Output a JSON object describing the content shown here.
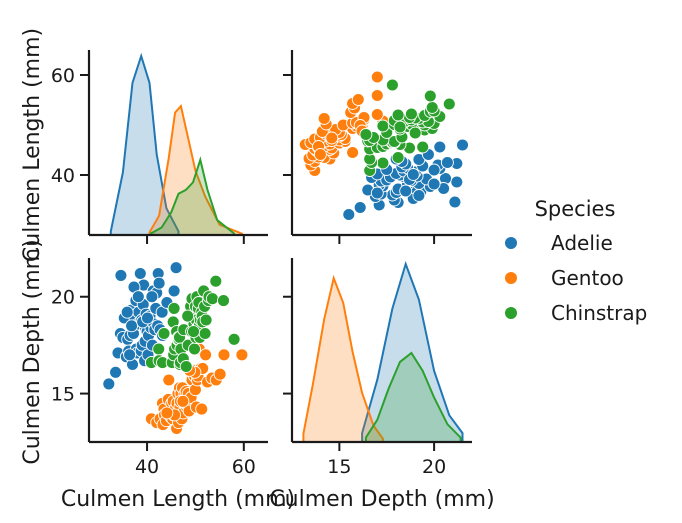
{
  "chart_data": {
    "type": "pairplot",
    "variables": [
      "Culmen Length (mm)",
      "Culmen Depth (mm)"
    ],
    "x_ticks": {
      "Culmen Length (mm)": [
        40,
        60
      ],
      "Culmen Depth (mm)": [
        15,
        20
      ]
    },
    "y_ticks": {
      "Culmen Length (mm)": [
        40,
        60
      ],
      "Culmen Depth (mm)": [
        15,
        20
      ]
    },
    "axis_ranges": {
      "Culmen Length (mm)": [
        28,
        65
      ],
      "Culmen Depth (mm)": [
        12.5,
        22
      ]
    },
    "legend": {
      "title": "Species",
      "placement": "right"
    },
    "series": [
      {
        "name": "Adelie",
        "color": "#1f77b4",
        "kde_length": {
          "x": [
            32.5,
            35,
            37,
            38.8,
            40.5,
            42,
            44,
            46.5
          ],
          "density": [
            0.02,
            0.35,
            0.85,
            1.0,
            0.85,
            0.45,
            0.15,
            0.02
          ]
        },
        "kde_depth": {
          "x": [
            16.2,
            17.0,
            17.8,
            18.5,
            19.2,
            20.0,
            20.8,
            21.5
          ],
          "density": [
            0.05,
            0.35,
            0.75,
            1.0,
            0.8,
            0.4,
            0.15,
            0.05
          ]
        },
        "points": [
          [
            32.1,
            15.5
          ],
          [
            33.5,
            16.1
          ],
          [
            34.0,
            17.1
          ],
          [
            34.5,
            18.1
          ],
          [
            35.0,
            17.9
          ],
          [
            35.3,
            18.9
          ],
          [
            35.7,
            16.9
          ],
          [
            36.0,
            17.8
          ],
          [
            36.2,
            17.2
          ],
          [
            36.5,
            18.0
          ],
          [
            36.7,
            19.3
          ],
          [
            37.0,
            16.5
          ],
          [
            37.2,
            18.1
          ],
          [
            37.5,
            18.9
          ],
          [
            37.7,
            19.8
          ],
          [
            37.8,
            17.3
          ],
          [
            38.0,
            17.1
          ],
          [
            38.1,
            18.6
          ],
          [
            38.3,
            19.2
          ],
          [
            38.6,
            21.2
          ],
          [
            38.8,
            17.2
          ],
          [
            38.9,
            18.8
          ],
          [
            39.0,
            17.5
          ],
          [
            39.2,
            19.6
          ],
          [
            39.3,
            20.6
          ],
          [
            39.5,
            16.7
          ],
          [
            39.6,
            17.7
          ],
          [
            39.7,
            18.4
          ],
          [
            39.8,
            19.1
          ],
          [
            40.0,
            18.2
          ],
          [
            40.2,
            17.0
          ],
          [
            40.3,
            18.0
          ],
          [
            40.5,
            18.9
          ],
          [
            40.6,
            19.0
          ],
          [
            40.8,
            18.4
          ],
          [
            40.9,
            16.6
          ],
          [
            41.1,
            17.5
          ],
          [
            41.3,
            20.3
          ],
          [
            41.4,
            18.6
          ],
          [
            41.6,
            18.3
          ],
          [
            41.8,
            19.4
          ],
          [
            42.0,
            20.2
          ],
          [
            42.2,
            18.5
          ],
          [
            42.3,
            21.2
          ],
          [
            42.5,
            20.7
          ],
          [
            42.7,
            18.3
          ],
          [
            43.1,
            19.2
          ],
          [
            43.2,
            18.0
          ],
          [
            44.1,
            19.7
          ],
          [
            45.6,
            20.3
          ],
          [
            46.0,
            21.5
          ],
          [
            35.9,
            19.2
          ],
          [
            34.6,
            21.1
          ],
          [
            37.3,
            20.5
          ],
          [
            36.8,
            18.5
          ],
          [
            39.1,
            18.7
          ],
          [
            40.1,
            18.9
          ],
          [
            38.2,
            20.0
          ],
          [
            41.0,
            20.0
          ],
          [
            36.4,
            17.0
          ]
        ]
      },
      {
        "name": "Gentoo",
        "color": "#ff7f0e",
        "kde_length": {
          "x": [
            40.5,
            42.5,
            44.5,
            45.8,
            47.0,
            48.5,
            50.0,
            52.0,
            55.0,
            59.6
          ],
          "density": [
            0.02,
            0.15,
            0.6,
            0.95,
            1.0,
            0.75,
            0.5,
            0.3,
            0.08,
            0.01
          ]
        },
        "kde_depth": {
          "x": [
            13.1,
            13.6,
            14.2,
            14.7,
            15.2,
            15.7,
            16.2,
            16.8,
            17.3
          ],
          "density": [
            0.05,
            0.35,
            0.75,
            1.0,
            0.85,
            0.55,
            0.3,
            0.1,
            0.02
          ]
        },
        "points": [
          [
            40.9,
            13.7
          ],
          [
            42.0,
            13.5
          ],
          [
            42.7,
            13.7
          ],
          [
            43.2,
            14.5
          ],
          [
            43.3,
            13.4
          ],
          [
            43.5,
            14.2
          ],
          [
            43.6,
            13.9
          ],
          [
            44.0,
            13.6
          ],
          [
            44.4,
            14.7
          ],
          [
            44.5,
            15.7
          ],
          [
            44.9,
            13.8
          ],
          [
            45.1,
            14.5
          ],
          [
            45.2,
            13.8
          ],
          [
            45.3,
            13.7
          ],
          [
            45.4,
            14.6
          ],
          [
            45.5,
            13.9
          ],
          [
            45.8,
            14.2
          ],
          [
            46.1,
            13.2
          ],
          [
            46.2,
            14.5
          ],
          [
            46.4,
            15.0
          ],
          [
            46.5,
            13.5
          ],
          [
            46.7,
            15.3
          ],
          [
            46.8,
            14.3
          ],
          [
            47.0,
            15.0
          ],
          [
            47.2,
            13.7
          ],
          [
            47.3,
            15.3
          ],
          [
            47.5,
            14.0
          ],
          [
            47.6,
            14.5
          ],
          [
            47.8,
            15.0
          ],
          [
            48.1,
            15.1
          ],
          [
            48.2,
            14.3
          ],
          [
            48.4,
            14.4
          ],
          [
            48.5,
            15.0
          ],
          [
            48.7,
            14.1
          ],
          [
            49.0,
            16.1
          ],
          [
            49.1,
            14.8
          ],
          [
            49.3,
            15.7
          ],
          [
            49.5,
            16.2
          ],
          [
            49.8,
            15.9
          ],
          [
            50.0,
            15.2
          ],
          [
            50.2,
            14.3
          ],
          [
            50.4,
            15.7
          ],
          [
            50.5,
            15.9
          ],
          [
            50.8,
            17.3
          ],
          [
            51.1,
            16.3
          ],
          [
            51.3,
            14.2
          ],
          [
            51.5,
            16.3
          ],
          [
            52.1,
            17.0
          ],
          [
            52.5,
            15.6
          ],
          [
            53.4,
            15.8
          ],
          [
            54.3,
            15.7
          ],
          [
            55.1,
            16.0
          ],
          [
            55.9,
            17.0
          ],
          [
            59.6,
            17.0
          ],
          [
            49.9,
            16.1
          ],
          [
            45.7,
            13.9
          ],
          [
            46.9,
            14.6
          ],
          [
            47.4,
            14.6
          ],
          [
            48.8,
            16.2
          ],
          [
            44.1,
            14.0
          ]
        ]
      },
      {
        "name": "Chinstrap",
        "color": "#2ca02c",
        "kde_length": {
          "x": [
            40.8,
            43.0,
            45.0,
            46.5,
            48.0,
            49.5,
            51.0,
            52.5,
            54.5,
            58.0
          ],
          "density": [
            0.02,
            0.1,
            0.3,
            0.55,
            0.6,
            0.7,
            1.0,
            0.6,
            0.2,
            0.02
          ]
        },
        "kde_depth": {
          "x": [
            16.4,
            17.0,
            17.6,
            18.2,
            18.8,
            19.4,
            20.0,
            20.7,
            21.4
          ],
          "density": [
            0.05,
            0.25,
            0.6,
            0.9,
            1.0,
            0.8,
            0.5,
            0.2,
            0.05
          ]
        },
        "points": [
          [
            40.9,
            16.6
          ],
          [
            42.4,
            17.3
          ],
          [
            42.5,
            16.7
          ],
          [
            43.2,
            16.6
          ],
          [
            43.5,
            18.1
          ],
          [
            45.2,
            16.6
          ],
          [
            45.4,
            18.7
          ],
          [
            45.5,
            17.0
          ],
          [
            45.6,
            19.4
          ],
          [
            45.7,
            17.3
          ],
          [
            46.1,
            18.2
          ],
          [
            46.2,
            17.5
          ],
          [
            46.4,
            17.8
          ],
          [
            46.5,
            17.9
          ],
          [
            46.6,
            17.8
          ],
          [
            46.7,
            17.9
          ],
          [
            46.8,
            16.5
          ],
          [
            46.9,
            16.6
          ],
          [
            47.0,
            17.3
          ],
          [
            47.5,
            16.8
          ],
          [
            47.6,
            18.3
          ],
          [
            48.1,
            16.4
          ],
          [
            48.5,
            17.5
          ],
          [
            49.0,
            19.5
          ],
          [
            49.2,
            18.2
          ],
          [
            49.3,
            19.9
          ],
          [
            49.5,
            19.0
          ],
          [
            49.7,
            18.6
          ],
          [
            49.8,
            17.3
          ],
          [
            50.0,
            19.5
          ],
          [
            50.1,
            17.9
          ],
          [
            50.2,
            18.8
          ],
          [
            50.3,
            20.0
          ],
          [
            50.5,
            18.4
          ],
          [
            50.6,
            19.4
          ],
          [
            50.7,
            19.7
          ],
          [
            50.8,
            18.5
          ],
          [
            50.9,
            17.9
          ],
          [
            51.0,
            18.8
          ],
          [
            51.3,
            19.2
          ],
          [
            51.4,
            19.0
          ],
          [
            51.5,
            18.7
          ],
          [
            51.7,
            20.3
          ],
          [
            51.9,
            19.5
          ],
          [
            52.0,
            18.1
          ],
          [
            52.2,
            18.8
          ],
          [
            52.7,
            19.8
          ],
          [
            52.8,
            20.0
          ],
          [
            53.5,
            19.9
          ],
          [
            54.2,
            20.8
          ],
          [
            55.8,
            19.8
          ],
          [
            58.0,
            17.8
          ],
          [
            49.6,
            18.2
          ],
          [
            48.4,
            19.0
          ]
        ]
      }
    ]
  }
}
